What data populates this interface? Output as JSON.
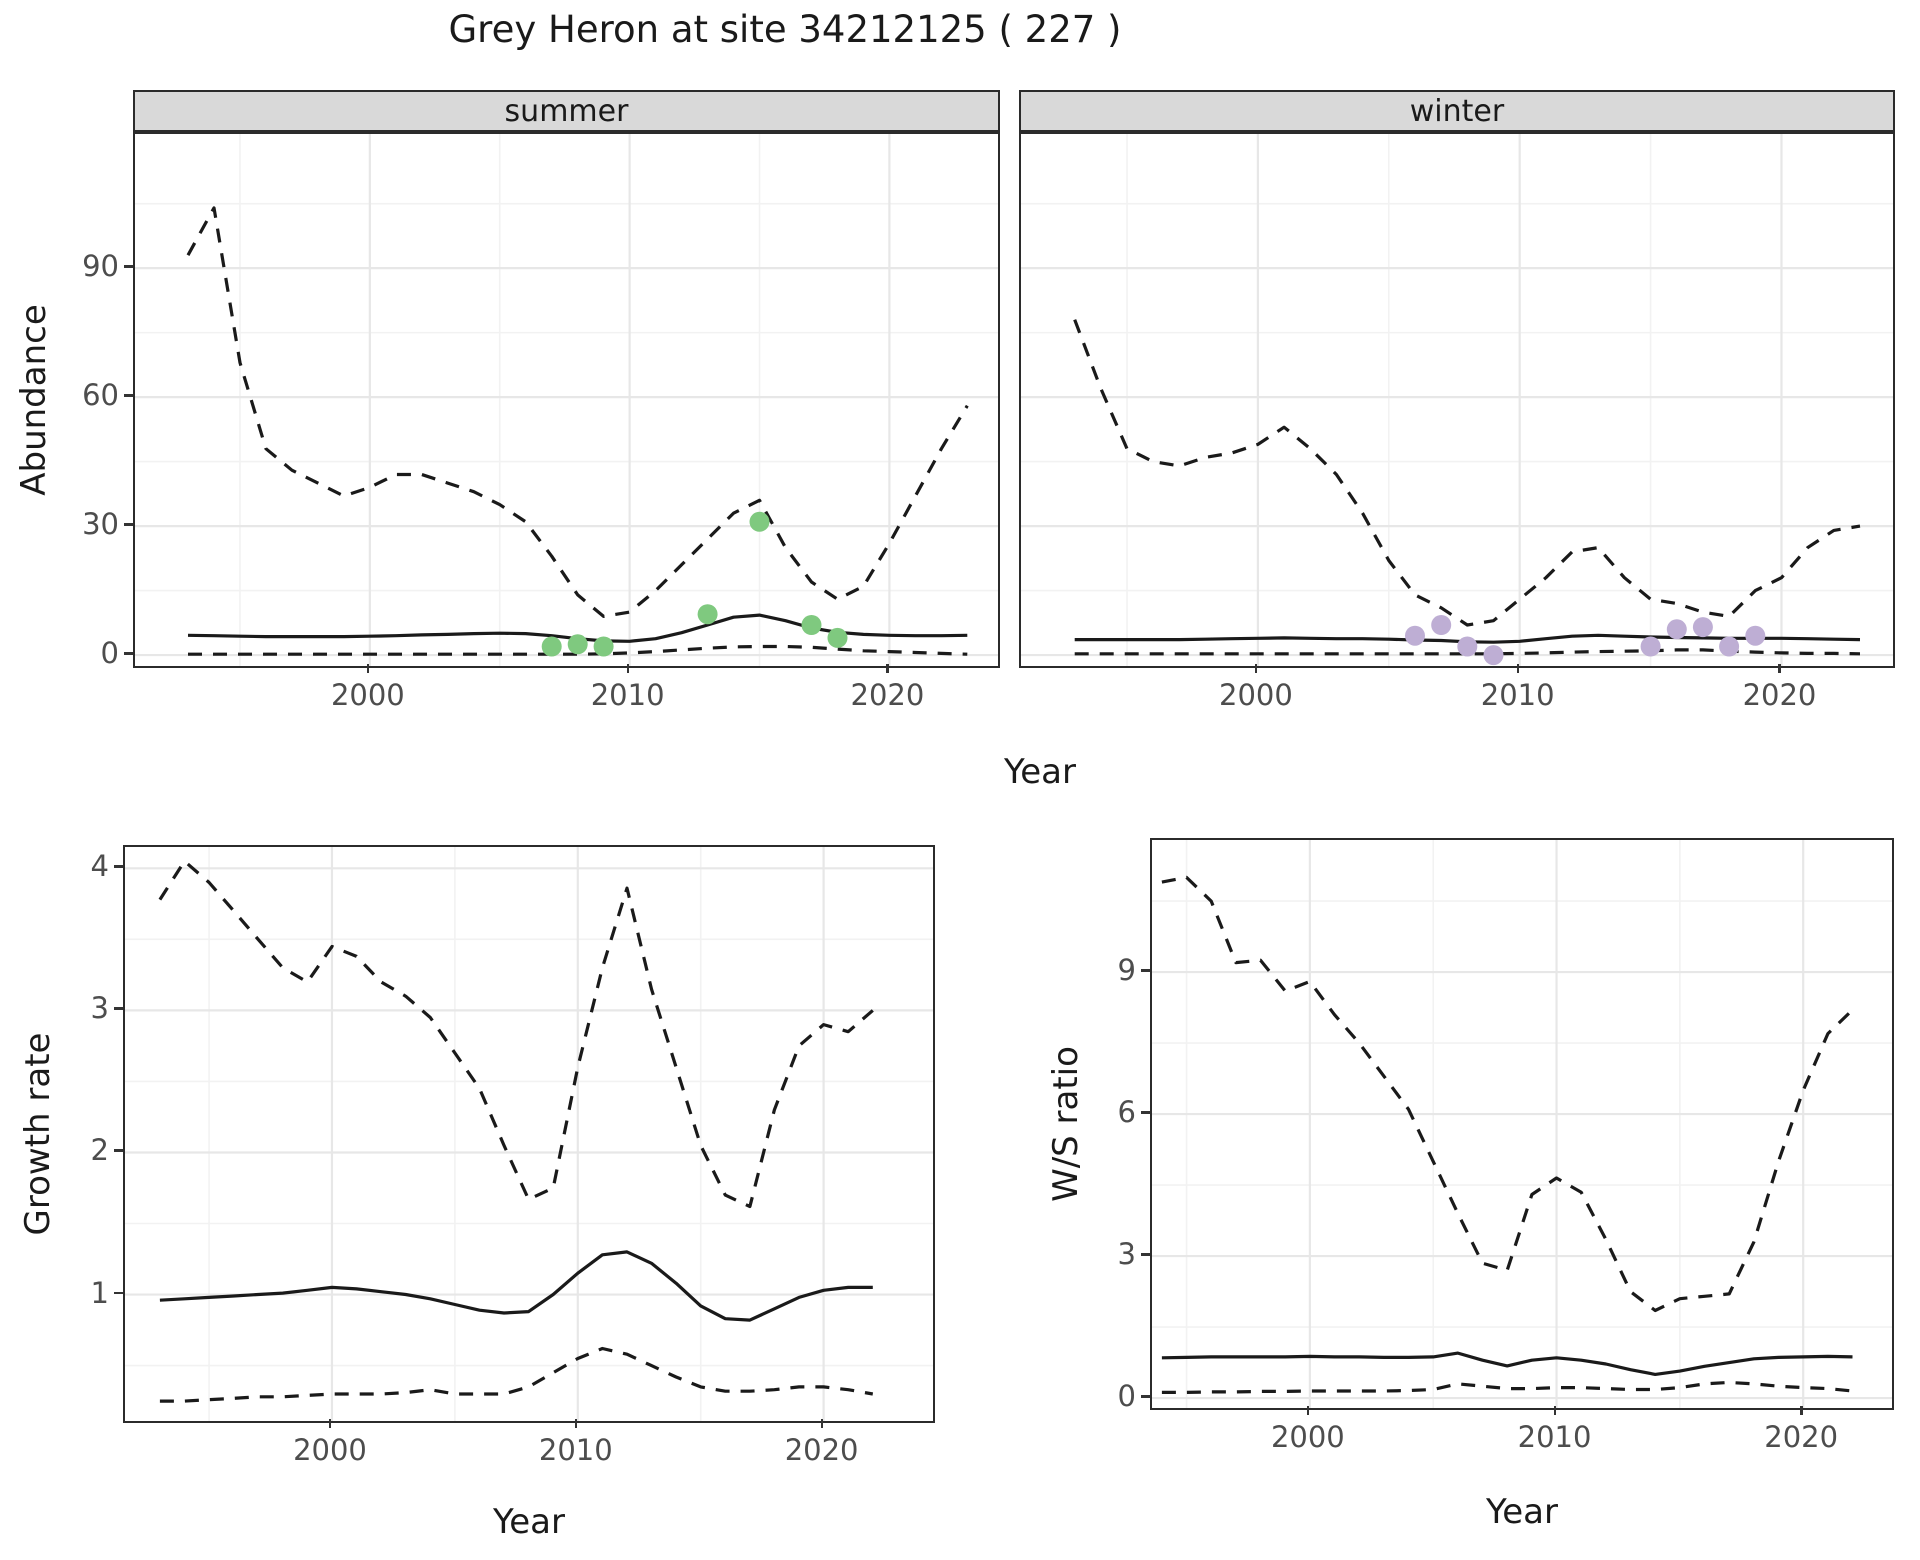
{
  "title": "Grey Heron at site 34212125 ( 227 )",
  "labels": {
    "year": "Year",
    "abundance": "Abundance",
    "growth_rate": "Growth rate",
    "ws_ratio": "W/S ratio"
  },
  "facets": {
    "summer": "summer",
    "winter": "winter"
  },
  "colors": {
    "line": "#1a1a1a",
    "grid_major": "#e7e7e7",
    "grid_minor": "#f2f2f2",
    "panel_border": "#2b2b2b",
    "strip_bg": "#d9d9d9",
    "tick_label": "#4d4d4d",
    "summer_points": "#7fc97f",
    "winter_points": "#beaed4"
  },
  "chart_data": [
    {
      "name": "summer-abundance",
      "type": "line",
      "facet": "summer",
      "xlabel": "Year",
      "ylabel": "Abundance",
      "xlim": [
        1990.96,
        2024.18
      ],
      "ylim": [
        -2.54,
        121.2
      ],
      "xticks": [
        2000,
        2010,
        2020
      ],
      "xticks_minor": [
        1995,
        2005,
        2015
      ],
      "yticks": [
        0,
        30,
        60,
        90
      ],
      "yticks_minor": [
        15,
        45,
        75,
        105
      ],
      "years": [
        1993,
        1994,
        1995,
        1996,
        1997,
        1998,
        1999,
        2000,
        2001,
        2002,
        2003,
        2004,
        2005,
        2006,
        2007,
        2008,
        2009,
        2010,
        2011,
        2012,
        2013,
        2014,
        2015,
        2016,
        2017,
        2018,
        2019,
        2020,
        2021,
        2022,
        2023
      ],
      "series": [
        {
          "name": "upper-95ci",
          "style": "dashed",
          "values": [
            93,
            104,
            68,
            48,
            43,
            40,
            37,
            39,
            42,
            42,
            40,
            38,
            35,
            31,
            23,
            14,
            9,
            10,
            15,
            21,
            27,
            33,
            36,
            25,
            17,
            13,
            16,
            26,
            37,
            48,
            58
          ]
        },
        {
          "name": "median",
          "style": "solid",
          "values": [
            4.6,
            4.5,
            4.4,
            4.3,
            4.3,
            4.3,
            4.3,
            4.4,
            4.5,
            4.7,
            4.8,
            5.0,
            5.1,
            5.0,
            4.5,
            3.8,
            3.3,
            3.2,
            3.8,
            5.2,
            7.0,
            8.8,
            9.3,
            8.0,
            6.3,
            5.3,
            4.8,
            4.6,
            4.5,
            4.5,
            4.6
          ]
        },
        {
          "name": "lower-95ci",
          "style": "dashed",
          "values": [
            0.2,
            0.2,
            0.2,
            0.2,
            0.2,
            0.2,
            0.2,
            0.2,
            0.2,
            0.2,
            0.2,
            0.2,
            0.2,
            0.2,
            0.2,
            0.2,
            0.3,
            0.5,
            0.8,
            1.2,
            1.6,
            1.9,
            2.0,
            2.0,
            1.8,
            1.4,
            1.0,
            0.8,
            0.6,
            0.4,
            0.2
          ]
        }
      ],
      "points": {
        "name": "observed-counts",
        "color": "#7fc97f",
        "x": [
          2007,
          2008,
          2009,
          2013,
          2015,
          2017,
          2018
        ],
        "y": [
          2,
          2.5,
          2,
          9.5,
          31,
          7,
          4
        ]
      }
    },
    {
      "name": "winter-abundance",
      "type": "line",
      "facet": "winter",
      "xlabel": "Year",
      "ylabel": "Abundance",
      "xlim": [
        1990.95,
        2024.26
      ],
      "ylim": [
        -2.54,
        121.2
      ],
      "xticks": [
        2000,
        2010,
        2020
      ],
      "xticks_minor": [
        1995,
        2005,
        2015
      ],
      "yticks": [
        0,
        30,
        60,
        90
      ],
      "yticks_minor": [
        15,
        45,
        75,
        105
      ],
      "years": [
        1993,
        1994,
        1995,
        1996,
        1997,
        1998,
        1999,
        2000,
        2001,
        2002,
        2003,
        2004,
        2005,
        2006,
        2007,
        2008,
        2009,
        2010,
        2011,
        2012,
        2013,
        2014,
        2015,
        2016,
        2017,
        2018,
        2019,
        2020,
        2021,
        2022,
        2023
      ],
      "series": [
        {
          "name": "upper-95ci",
          "style": "dashed",
          "values": [
            78,
            62,
            48,
            45,
            44,
            46,
            47,
            49,
            53,
            48,
            42,
            33,
            22,
            14,
            11,
            7,
            8,
            13,
            18,
            24,
            25,
            18,
            13,
            12,
            10,
            9,
            15,
            18,
            25,
            29,
            30
          ]
        },
        {
          "name": "median",
          "style": "solid",
          "values": [
            3.6,
            3.6,
            3.6,
            3.6,
            3.6,
            3.7,
            3.8,
            3.9,
            4.0,
            3.9,
            3.8,
            3.8,
            3.7,
            3.5,
            3.4,
            3.1,
            3.0,
            3.2,
            3.8,
            4.4,
            4.6,
            4.4,
            4.2,
            4.1,
            4.0,
            3.9,
            3.9,
            3.9,
            3.8,
            3.7,
            3.6
          ]
        },
        {
          "name": "lower-95ci",
          "style": "dashed",
          "values": [
            0.3,
            0.3,
            0.3,
            0.3,
            0.3,
            0.3,
            0.3,
            0.3,
            0.3,
            0.3,
            0.3,
            0.3,
            0.3,
            0.3,
            0.3,
            0.3,
            0.3,
            0.4,
            0.5,
            0.7,
            0.8,
            0.9,
            1.0,
            1.2,
            1.2,
            0.9,
            0.7,
            0.5,
            0.4,
            0.4,
            0.3
          ]
        }
      ],
      "points": {
        "name": "observed-counts",
        "color": "#beaed4",
        "x": [
          2006,
          2007,
          2008,
          2009,
          2015,
          2016,
          2017,
          2018,
          2019
        ],
        "y": [
          4.5,
          7,
          2,
          0,
          2,
          6,
          6.5,
          2,
          4.5
        ]
      }
    },
    {
      "name": "growth-rate",
      "type": "line",
      "xlabel": "Year",
      "ylabel": "Growth rate",
      "xlim": [
        1991.58,
        2024.45
      ],
      "ylim": [
        0.11,
        4.15
      ],
      "xticks": [
        2000,
        2010,
        2020
      ],
      "xticks_minor": [
        1995,
        2005,
        2015
      ],
      "yticks": [
        1,
        2,
        3,
        4
      ],
      "yticks_minor": [
        0.5,
        1.5,
        2.5,
        3.5
      ],
      "years": [
        1993,
        1994,
        1995,
        1996,
        1997,
        1998,
        1999,
        2000,
        2001,
        2002,
        2003,
        2004,
        2005,
        2006,
        2007,
        2008,
        2009,
        2010,
        2011,
        2012,
        2013,
        2014,
        2015,
        2016,
        2017,
        2018,
        2019,
        2020,
        2021,
        2022
      ],
      "series": [
        {
          "name": "upper-95ci",
          "style": "dashed",
          "values": [
            3.78,
            4.05,
            3.9,
            3.7,
            3.5,
            3.3,
            3.2,
            3.45,
            3.38,
            3.2,
            3.1,
            2.95,
            2.7,
            2.45,
            2.05,
            1.67,
            1.75,
            2.6,
            3.3,
            3.86,
            3.15,
            2.6,
            2.05,
            1.7,
            1.62,
            2.3,
            2.75,
            2.9,
            2.85,
            3.0
          ]
        },
        {
          "name": "median",
          "style": "solid",
          "values": [
            0.96,
            0.97,
            0.98,
            0.99,
            1.0,
            1.01,
            1.03,
            1.05,
            1.04,
            1.02,
            1.0,
            0.97,
            0.93,
            0.89,
            0.87,
            0.88,
            1.0,
            1.15,
            1.28,
            1.3,
            1.22,
            1.08,
            0.92,
            0.83,
            0.82,
            0.9,
            0.98,
            1.03,
            1.05,
            1.05
          ]
        },
        {
          "name": "lower-95ci",
          "style": "dashed",
          "values": [
            0.25,
            0.25,
            0.26,
            0.27,
            0.28,
            0.28,
            0.29,
            0.3,
            0.3,
            0.3,
            0.31,
            0.33,
            0.3,
            0.3,
            0.3,
            0.35,
            0.45,
            0.55,
            0.62,
            0.58,
            0.5,
            0.42,
            0.35,
            0.32,
            0.32,
            0.33,
            0.35,
            0.35,
            0.33,
            0.3
          ]
        }
      ]
    },
    {
      "name": "ws-ratio",
      "type": "line",
      "xlabel": "Year",
      "ylabel": "W/S ratio",
      "xlim": [
        1993.6,
        2023.6
      ],
      "ylim": [
        -0.21,
        11.79
      ],
      "xticks": [
        2000,
        2010,
        2020
      ],
      "xticks_minor": [
        1995,
        2005,
        2015
      ],
      "yticks": [
        0,
        3,
        6,
        9
      ],
      "yticks_minor": [
        1.5,
        4.5,
        7.5,
        10.5
      ],
      "years": [
        1994,
        1995,
        1996,
        1997,
        1998,
        1999,
        2000,
        2001,
        2002,
        2003,
        2004,
        2005,
        2006,
        2007,
        2008,
        2009,
        2010,
        2011,
        2012,
        2013,
        2014,
        2015,
        2016,
        2017,
        2018,
        2019,
        2020,
        2021,
        2022
      ],
      "series": [
        {
          "name": "upper-95ci",
          "style": "dashed",
          "values": [
            10.9,
            11.0,
            10.5,
            9.2,
            9.25,
            8.6,
            8.8,
            8.1,
            7.5,
            6.8,
            6.1,
            5.0,
            3.9,
            2.85,
            2.7,
            4.3,
            4.65,
            4.35,
            3.35,
            2.25,
            1.85,
            2.1,
            2.15,
            2.2,
            3.3,
            5.0,
            6.5,
            7.7,
            8.2
          ]
        },
        {
          "name": "median",
          "style": "solid",
          "values": [
            0.85,
            0.86,
            0.87,
            0.87,
            0.87,
            0.87,
            0.88,
            0.87,
            0.87,
            0.86,
            0.86,
            0.87,
            0.95,
            0.8,
            0.68,
            0.8,
            0.85,
            0.8,
            0.72,
            0.6,
            0.5,
            0.57,
            0.67,
            0.75,
            0.83,
            0.86,
            0.87,
            0.88,
            0.87
          ]
        },
        {
          "name": "lower-95ci",
          "style": "dashed",
          "values": [
            0.12,
            0.12,
            0.13,
            0.13,
            0.14,
            0.14,
            0.15,
            0.15,
            0.15,
            0.15,
            0.16,
            0.18,
            0.3,
            0.25,
            0.2,
            0.2,
            0.22,
            0.22,
            0.2,
            0.18,
            0.18,
            0.22,
            0.3,
            0.33,
            0.3,
            0.25,
            0.22,
            0.2,
            0.15
          ]
        }
      ]
    }
  ]
}
